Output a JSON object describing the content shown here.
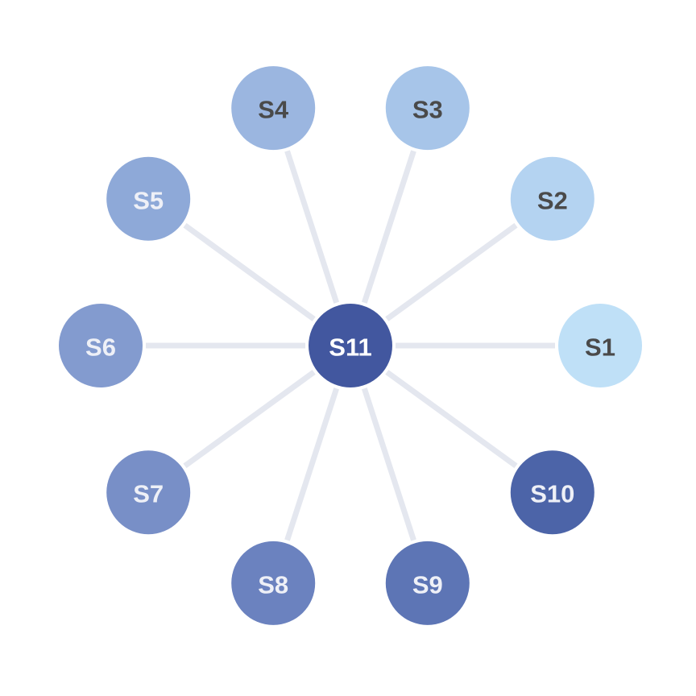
{
  "diagram": {
    "hub": {
      "id": "S11",
      "label": "S11",
      "fill": "#42579f",
      "text_color": "#ffffff"
    },
    "spokes": [
      {
        "id": "S1",
        "label": "S1",
        "fill": "#bfe0f7",
        "text_color": "#4a4a4a"
      },
      {
        "id": "S2",
        "label": "S2",
        "fill": "#b4d3f1",
        "text_color": "#4a4a4a"
      },
      {
        "id": "S3",
        "label": "S3",
        "fill": "#a7c5e9",
        "text_color": "#4a4a4a"
      },
      {
        "id": "S4",
        "label": "S4",
        "fill": "#9bb6e0",
        "text_color": "#4a4a4a"
      },
      {
        "id": "S5",
        "label": "S5",
        "fill": "#8ea9d8",
        "text_color": "#eef0f7"
      },
      {
        "id": "S6",
        "label": "S6",
        "fill": "#839bcf",
        "text_color": "#eef0f7"
      },
      {
        "id": "S7",
        "label": "S7",
        "fill": "#788fc7",
        "text_color": "#eef0f7"
      },
      {
        "id": "S8",
        "label": "S8",
        "fill": "#6b82bf",
        "text_color": "#eef0f7"
      },
      {
        "id": "S9",
        "label": "S9",
        "fill": "#5d75b5",
        "text_color": "#eef0f7"
      },
      {
        "id": "S10",
        "label": "S10",
        "fill": "#4c64a8",
        "text_color": "#eef0f7"
      }
    ],
    "edges": [
      {
        "source": "S11",
        "target": "S1"
      },
      {
        "source": "S11",
        "target": "S2"
      },
      {
        "source": "S11",
        "target": "S3"
      },
      {
        "source": "S11",
        "target": "S4"
      },
      {
        "source": "S11",
        "target": "S5"
      },
      {
        "source": "S11",
        "target": "S6"
      },
      {
        "source": "S11",
        "target": "S7"
      },
      {
        "source": "S11",
        "target": "S8"
      },
      {
        "source": "S11",
        "target": "S9"
      },
      {
        "source": "S11",
        "target": "S10"
      }
    ],
    "edge_color": "#e4e7ef",
    "layout": "radial"
  }
}
